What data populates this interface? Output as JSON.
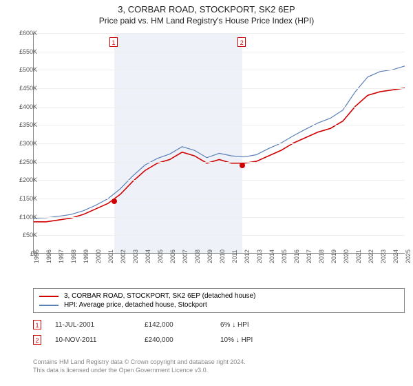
{
  "title": {
    "main": "3, CORBAR ROAD, STOCKPORT, SK2 6EP",
    "sub": "Price paid vs. HM Land Registry's House Price Index (HPI)"
  },
  "chart": {
    "type": "line",
    "background_color": "#ffffff",
    "grid_color": "#eeeeee",
    "axis_color": "#888888",
    "label_color": "#555555",
    "label_fontsize": 9,
    "x_start_year": 1995,
    "x_end_year": 2025,
    "ylim": [
      0,
      600000
    ],
    "ytick_step": 50000,
    "ytick_prefix": "£",
    "ytick_suffix": "K",
    "year_band": {
      "start": 2001.5,
      "end": 2011.85,
      "fill": "#eef2f8"
    },
    "series": [
      {
        "name": "3, CORBAR ROAD, STOCKPORT, SK2 6EP (detached house)",
        "color": "#d00000",
        "width": 1.6,
        "values": [
          [
            1995,
            85000
          ],
          [
            1996,
            85000
          ],
          [
            1997,
            90000
          ],
          [
            1998,
            95000
          ],
          [
            1999,
            105000
          ],
          [
            2000,
            120000
          ],
          [
            2001,
            135000
          ],
          [
            2002,
            160000
          ],
          [
            2003,
            195000
          ],
          [
            2004,
            225000
          ],
          [
            2005,
            245000
          ],
          [
            2006,
            255000
          ],
          [
            2007,
            275000
          ],
          [
            2008,
            265000
          ],
          [
            2009,
            245000
          ],
          [
            2010,
            255000
          ],
          [
            2011,
            245000
          ],
          [
            2012,
            245000
          ],
          [
            2013,
            250000
          ],
          [
            2014,
            265000
          ],
          [
            2015,
            280000
          ],
          [
            2016,
            300000
          ],
          [
            2017,
            315000
          ],
          [
            2018,
            330000
          ],
          [
            2019,
            340000
          ],
          [
            2020,
            360000
          ],
          [
            2021,
            400000
          ],
          [
            2022,
            430000
          ],
          [
            2023,
            440000
          ],
          [
            2024,
            445000
          ],
          [
            2025,
            450000
          ]
        ]
      },
      {
        "name": "HPI: Average price, detached house, Stockport",
        "color": "#5b7fb8",
        "width": 1.2,
        "values": [
          [
            1995,
            95000
          ],
          [
            1996,
            96000
          ],
          [
            1997,
            100000
          ],
          [
            1998,
            105000
          ],
          [
            1999,
            115000
          ],
          [
            2000,
            130000
          ],
          [
            2001,
            148000
          ],
          [
            2002,
            175000
          ],
          [
            2003,
            210000
          ],
          [
            2004,
            240000
          ],
          [
            2005,
            258000
          ],
          [
            2006,
            270000
          ],
          [
            2007,
            290000
          ],
          [
            2008,
            280000
          ],
          [
            2009,
            260000
          ],
          [
            2010,
            272000
          ],
          [
            2011,
            265000
          ],
          [
            2012,
            262000
          ],
          [
            2013,
            268000
          ],
          [
            2014,
            285000
          ],
          [
            2015,
            300000
          ],
          [
            2016,
            320000
          ],
          [
            2017,
            338000
          ],
          [
            2018,
            355000
          ],
          [
            2019,
            368000
          ],
          [
            2020,
            390000
          ],
          [
            2021,
            440000
          ],
          [
            2022,
            480000
          ],
          [
            2023,
            495000
          ],
          [
            2024,
            500000
          ],
          [
            2025,
            510000
          ]
        ]
      }
    ],
    "sale_points": [
      {
        "marker": "1",
        "year": 2001.5,
        "price": 142000
      },
      {
        "marker": "2",
        "year": 2011.85,
        "price": 240000
      }
    ]
  },
  "legend": {
    "rows": [
      {
        "color": "#d00000",
        "label": "3, CORBAR ROAD, STOCKPORT, SK2 6EP (detached house)"
      },
      {
        "color": "#5b7fb8",
        "label": "HPI: Average price, detached house, Stockport"
      }
    ]
  },
  "sales": [
    {
      "marker": "1",
      "date": "11-JUL-2001",
      "price": "£142,000",
      "diff": "6% ↓ HPI"
    },
    {
      "marker": "2",
      "date": "10-NOV-2011",
      "price": "£240,000",
      "diff": "10% ↓ HPI"
    }
  ],
  "footer": {
    "line1": "Contains HM Land Registry data © Crown copyright and database right 2024.",
    "line2": "This data is licensed under the Open Government Licence v3.0."
  }
}
